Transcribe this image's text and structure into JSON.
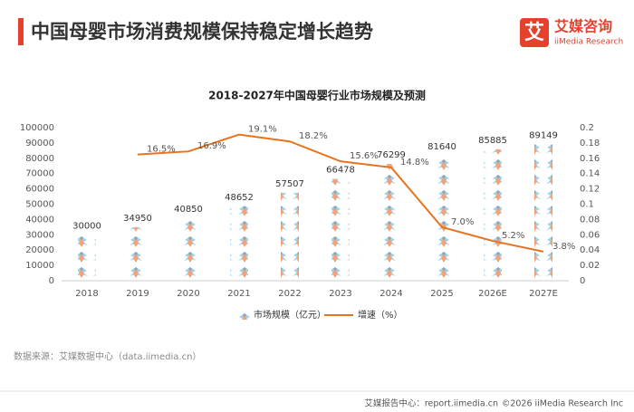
{
  "header": {
    "title": "中国母婴市场消费规模保持稳定增长趋势",
    "logo_char": "艾",
    "logo_name": "艾媒咨询",
    "logo_sub": "iiMedia Research"
  },
  "chart_data": {
    "type": "bar",
    "title": "2018-2027年中国母婴行业市场规模及预测",
    "categories": [
      "2018",
      "2019",
      "2020",
      "2021",
      "2022",
      "2023",
      "2024",
      "2025",
      "2026E",
      "2027E"
    ],
    "series": [
      {
        "name": "市场规模（亿元）",
        "color": "#9fd4e8",
        "values": [
          30000,
          34950,
          40850,
          48652,
          57507,
          66478,
          76299,
          81640,
          85885,
          89149
        ]
      },
      {
        "name": "增速（%）",
        "color": "#e8731e",
        "type": "line",
        "axis": "y2",
        "values": [
          null,
          0.165,
          0.169,
          0.191,
          0.182,
          0.156,
          0.148,
          0.07,
          0.052,
          0.038
        ],
        "value_labels": [
          null,
          "16.5%",
          "16.9%",
          "19.1%",
          "18.2%",
          "15.6%",
          "14.8%",
          "7.0%",
          "5.2%",
          "3.8%"
        ]
      }
    ],
    "ylim": [
      0,
      100000
    ],
    "yticks": [
      0,
      10000,
      20000,
      30000,
      40000,
      50000,
      60000,
      70000,
      80000,
      90000,
      100000
    ],
    "y2lim": [
      0,
      0.2
    ],
    "y2ticks": [
      0,
      0.02,
      0.04,
      0.06,
      0.08,
      0.1,
      0.12,
      0.14,
      0.16,
      0.18,
      0.2
    ],
    "grid": false,
    "legend": "bottom"
  },
  "source": "数据来源：艾媒数据中心（data.iimedia.cn）",
  "footer": {
    "left": "艾媒报告中心：report.iimedia.cn",
    "right": "©2026  iiMedia Research  Inc"
  }
}
